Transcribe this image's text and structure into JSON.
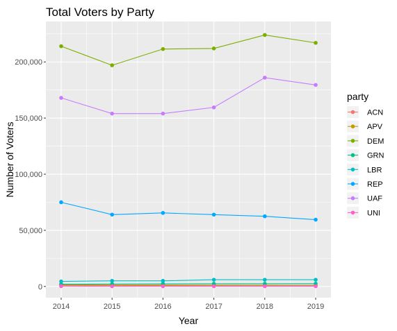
{
  "chart_data": {
    "type": "line",
    "title": "Total Voters by Party",
    "xlabel": "Year",
    "ylabel": "Number of Voters",
    "x": [
      2014,
      2015,
      2016,
      2017,
      2018,
      2019
    ],
    "xlim": [
      2013.7,
      2019.3
    ],
    "ylim": [
      -10000,
      236000
    ],
    "y_ticks": [
      0,
      50000,
      100000,
      150000,
      200000
    ],
    "y_tick_labels": [
      "0",
      "50,000",
      "100,000",
      "150,000",
      "200,000"
    ],
    "x_tick_labels": [
      "2014",
      "2015",
      "2016",
      "2017",
      "2018",
      "2019"
    ],
    "grid": true,
    "legend_title": "party",
    "legend_position": "right",
    "series": [
      {
        "name": "ACN",
        "color": "#F8766D",
        "values": [
          1500,
          1400,
          1300,
          1200,
          1100,
          1000
        ]
      },
      {
        "name": "APV",
        "color": "#C49A00",
        "values": [
          1000,
          900,
          800,
          700,
          600,
          500
        ]
      },
      {
        "name": "DEM",
        "color": "#7CAE00",
        "values": [
          214000,
          197000,
          211500,
          212000,
          224000,
          217000
        ]
      },
      {
        "name": "GRN",
        "color": "#00C08B",
        "values": [
          2000,
          2200,
          2300,
          2400,
          2400,
          2500
        ]
      },
      {
        "name": "LBR",
        "color": "#00BFC4",
        "values": [
          4500,
          5000,
          5000,
          6000,
          6000,
          6000
        ]
      },
      {
        "name": "REP",
        "color": "#00A9FF",
        "values": [
          75000,
          64000,
          65500,
          64000,
          62500,
          59500
        ]
      },
      {
        "name": "UAF",
        "color": "#C77CFF",
        "values": [
          168000,
          154000,
          154000,
          159500,
          186000,
          179500
        ]
      },
      {
        "name": "UNI",
        "color": "#FF61CC",
        "values": [
          300,
          200,
          200,
          200,
          200,
          200
        ]
      }
    ]
  }
}
